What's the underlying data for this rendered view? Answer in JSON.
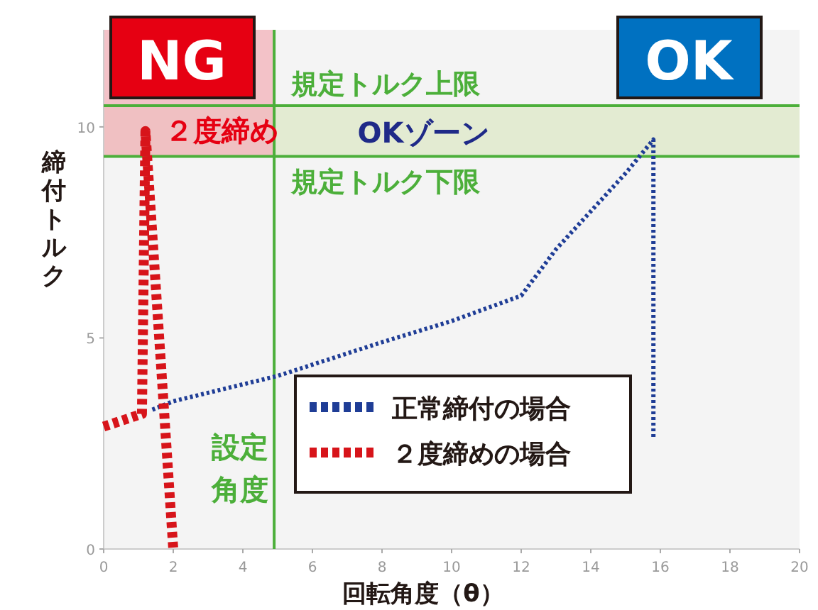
{
  "chart_data": {
    "type": "line",
    "xlabel": "回転角度（θ）",
    "ylabel": "締付トルク",
    "xlim": [
      0,
      20
    ],
    "ylim": [
      0,
      12.3
    ],
    "xticks": [
      0,
      2,
      4,
      6,
      8,
      10,
      12,
      14,
      16,
      18,
      20
    ],
    "yticks": [
      0,
      5,
      10
    ],
    "series": [
      {
        "name": "正常締付の場合",
        "color": "#1f3d96",
        "line_style": "dotted",
        "x": [
          1.4,
          2,
          5,
          8,
          10,
          11,
          12,
          13,
          14,
          15,
          15.8,
          15.8
        ],
        "values": [
          3.3,
          3.5,
          4.1,
          4.9,
          5.4,
          5.7,
          6.0,
          7.1,
          8.0,
          8.9,
          9.7,
          2.6
        ]
      },
      {
        "name": "２度締めの場合",
        "color": "#d7141a",
        "line_style": "dashed",
        "x": [
          0,
          1.1,
          1.2,
          2.0
        ],
        "values": [
          2.9,
          3.2,
          9.9,
          0
        ]
      }
    ],
    "ref_lines": [
      {
        "axis": "y",
        "value": 10.5,
        "label": "規定トルク上限",
        "color": "#4caf3a"
      },
      {
        "axis": "y",
        "value": 9.3,
        "label": "規定トルク下限",
        "color": "#4caf3a"
      },
      {
        "axis": "x",
        "value": 4.9,
        "label": "設定角度",
        "color": "#4caf3a"
      }
    ],
    "bands": [
      {
        "axis": "y",
        "from": 9.3,
        "to": 10.5,
        "label": "OKゾーン",
        "color": "#e3ebd2"
      },
      {
        "axis": "x",
        "from": 0,
        "to": 4.9,
        "color": "#f2b8bf"
      }
    ],
    "annotations": [
      "NG",
      "OK",
      "２度締め"
    ],
    "legend": "bottom",
    "grid": false
  }
}
